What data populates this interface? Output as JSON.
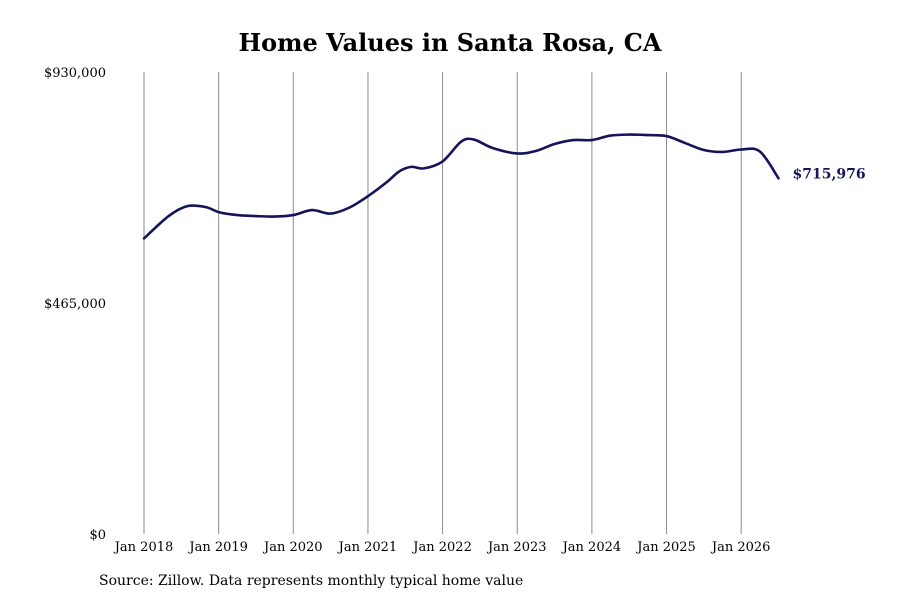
{
  "chart_data": {
    "type": "line",
    "title": "Home Values in Santa Rosa, CA",
    "xlabel": "",
    "ylabel": "",
    "ylim": [
      0,
      930000
    ],
    "y_ticks": [
      "$930,000",
      "$465,000",
      "$0"
    ],
    "y_tick_values": [
      930000,
      465000,
      0
    ],
    "x_ticks": [
      "Jan 2018",
      "Jan 2019",
      "Jan 2020",
      "Jan 2021",
      "Jan 2022",
      "Jan 2023",
      "Jan 2024",
      "Jan 2025",
      "Jan 2026"
    ],
    "x_tick_values": [
      2018,
      2019,
      2020,
      2021,
      2022,
      2023,
      2024,
      2025,
      2026
    ],
    "xlim": [
      2018,
      2026.5
    ],
    "grid": "vertical",
    "line_color": "#14145a",
    "end_label": "$715,976",
    "series": [
      {
        "x": [
          2018.0,
          2018.33,
          2018.58,
          2018.83,
          2019.0,
          2019.25,
          2019.5,
          2019.75,
          2020.0,
          2020.25,
          2020.5,
          2020.75,
          2021.0,
          2021.25,
          2021.42,
          2021.58,
          2021.75,
          2022.0,
          2022.25,
          2022.42,
          2022.67,
          2023.0,
          2023.25,
          2023.5,
          2023.75,
          2024.0,
          2024.25,
          2024.5,
          2024.75,
          2025.0,
          2025.25,
          2025.5,
          2025.75,
          2026.0,
          2026.25,
          2026.5
        ],
        "y": [
          595000,
          640000,
          660000,
          658000,
          648000,
          642000,
          640000,
          639000,
          642000,
          652000,
          645000,
          657000,
          680000,
          708000,
          730000,
          739000,
          736000,
          750000,
          790000,
          794000,
          777000,
          766000,
          771000,
          785000,
          793000,
          793000,
          802000,
          804000,
          803000,
          801000,
          787000,
          773000,
          769000,
          774000,
          770000,
          716000
        ]
      }
    ]
  },
  "source": "Source: Zillow. Data represents monthly typical home value"
}
